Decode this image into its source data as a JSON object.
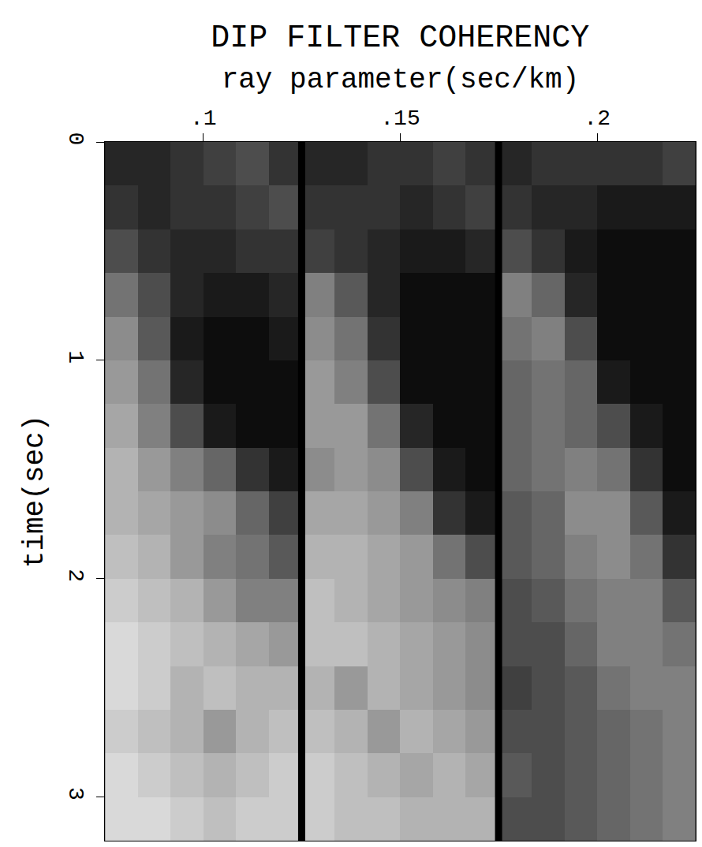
{
  "chart_data": {
    "type": "heatmap",
    "title": "DIP FILTER COHERENCY",
    "x_label": "ray parameter(sec/km)",
    "y_label": "time(sec)",
    "xlim": [
      0.075,
      0.225
    ],
    "xticks": [
      {
        "value": 0.1,
        "label": ".1"
      },
      {
        "value": 0.15,
        "label": ".15"
      },
      {
        "value": 0.2,
        "label": ".2"
      }
    ],
    "ylim": [
      0,
      3.2
    ],
    "yticks": [
      0,
      1,
      2,
      3
    ],
    "color": "gray",
    "zlim": [
      0,
      1
    ],
    "y": [
      0.1,
      0.3,
      0.5,
      0.7,
      0.9,
      1.1,
      1.3,
      1.5,
      1.7,
      1.9,
      2.1,
      2.3,
      2.5,
      2.7,
      2.9,
      3.1
    ],
    "panels": [
      {
        "x": [
          0.0792,
          0.0875,
          0.0958,
          0.1042,
          0.1125,
          0.1208
        ],
        "z": [
          [
            0.15,
            0.15,
            0.2,
            0.25,
            0.3,
            0.2
          ],
          [
            0.2,
            0.15,
            0.2,
            0.2,
            0.25,
            0.3
          ],
          [
            0.3,
            0.2,
            0.15,
            0.15,
            0.2,
            0.2
          ],
          [
            0.45,
            0.3,
            0.15,
            0.1,
            0.1,
            0.15
          ],
          [
            0.55,
            0.35,
            0.1,
            0.05,
            0.05,
            0.1
          ],
          [
            0.6,
            0.45,
            0.15,
            0.05,
            0.05,
            0.05
          ],
          [
            0.65,
            0.5,
            0.3,
            0.1,
            0.05,
            0.05
          ],
          [
            0.7,
            0.6,
            0.5,
            0.4,
            0.2,
            0.1
          ],
          [
            0.7,
            0.65,
            0.6,
            0.55,
            0.4,
            0.25
          ],
          [
            0.75,
            0.7,
            0.6,
            0.5,
            0.45,
            0.35
          ],
          [
            0.8,
            0.75,
            0.7,
            0.6,
            0.5,
            0.5
          ],
          [
            0.85,
            0.8,
            0.75,
            0.7,
            0.65,
            0.6
          ],
          [
            0.85,
            0.8,
            0.7,
            0.75,
            0.7,
            0.7
          ],
          [
            0.8,
            0.75,
            0.7,
            0.6,
            0.7,
            0.75
          ],
          [
            0.85,
            0.8,
            0.75,
            0.7,
            0.75,
            0.8
          ],
          [
            0.85,
            0.85,
            0.8,
            0.75,
            0.8,
            0.8
          ]
        ]
      },
      {
        "x": [
          0.1292,
          0.1375,
          0.1458,
          0.1542,
          0.1625,
          0.1708
        ],
        "z": [
          [
            0.15,
            0.15,
            0.2,
            0.2,
            0.25,
            0.2
          ],
          [
            0.2,
            0.2,
            0.2,
            0.15,
            0.2,
            0.25
          ],
          [
            0.25,
            0.2,
            0.15,
            0.1,
            0.1,
            0.15
          ],
          [
            0.5,
            0.35,
            0.15,
            0.05,
            0.05,
            0.05
          ],
          [
            0.55,
            0.45,
            0.2,
            0.05,
            0.05,
            0.05
          ],
          [
            0.6,
            0.5,
            0.3,
            0.05,
            0.05,
            0.05
          ],
          [
            0.6,
            0.6,
            0.45,
            0.15,
            0.05,
            0.05
          ],
          [
            0.55,
            0.6,
            0.55,
            0.3,
            0.1,
            0.05
          ],
          [
            0.65,
            0.65,
            0.6,
            0.5,
            0.2,
            0.1
          ],
          [
            0.7,
            0.7,
            0.65,
            0.6,
            0.45,
            0.3
          ],
          [
            0.75,
            0.7,
            0.65,
            0.6,
            0.55,
            0.5
          ],
          [
            0.75,
            0.75,
            0.7,
            0.65,
            0.6,
            0.55
          ],
          [
            0.7,
            0.6,
            0.7,
            0.65,
            0.6,
            0.55
          ],
          [
            0.75,
            0.7,
            0.6,
            0.7,
            0.65,
            0.6
          ],
          [
            0.8,
            0.75,
            0.7,
            0.65,
            0.7,
            0.65
          ],
          [
            0.8,
            0.75,
            0.75,
            0.7,
            0.7,
            0.7
          ]
        ]
      },
      {
        "x": [
          0.1792,
          0.1875,
          0.1958,
          0.2042,
          0.2125,
          0.2208
        ],
        "z": [
          [
            0.15,
            0.2,
            0.2,
            0.2,
            0.2,
            0.25
          ],
          [
            0.2,
            0.15,
            0.15,
            0.1,
            0.1,
            0.1
          ],
          [
            0.3,
            0.2,
            0.1,
            0.05,
            0.05,
            0.05
          ],
          [
            0.5,
            0.4,
            0.15,
            0.05,
            0.05,
            0.05
          ],
          [
            0.45,
            0.5,
            0.3,
            0.05,
            0.05,
            0.05
          ],
          [
            0.4,
            0.45,
            0.4,
            0.1,
            0.05,
            0.05
          ],
          [
            0.4,
            0.45,
            0.4,
            0.3,
            0.1,
            0.05
          ],
          [
            0.4,
            0.45,
            0.5,
            0.45,
            0.2,
            0.05
          ],
          [
            0.35,
            0.4,
            0.55,
            0.55,
            0.35,
            0.1
          ],
          [
            0.35,
            0.4,
            0.5,
            0.55,
            0.45,
            0.2
          ],
          [
            0.3,
            0.35,
            0.45,
            0.5,
            0.5,
            0.35
          ],
          [
            0.3,
            0.3,
            0.4,
            0.5,
            0.5,
            0.45
          ],
          [
            0.25,
            0.3,
            0.35,
            0.45,
            0.5,
            0.5
          ],
          [
            0.3,
            0.3,
            0.35,
            0.4,
            0.45,
            0.5
          ],
          [
            0.35,
            0.3,
            0.35,
            0.4,
            0.45,
            0.5
          ],
          [
            0.3,
            0.3,
            0.35,
            0.4,
            0.45,
            0.5
          ]
        ]
      }
    ]
  }
}
